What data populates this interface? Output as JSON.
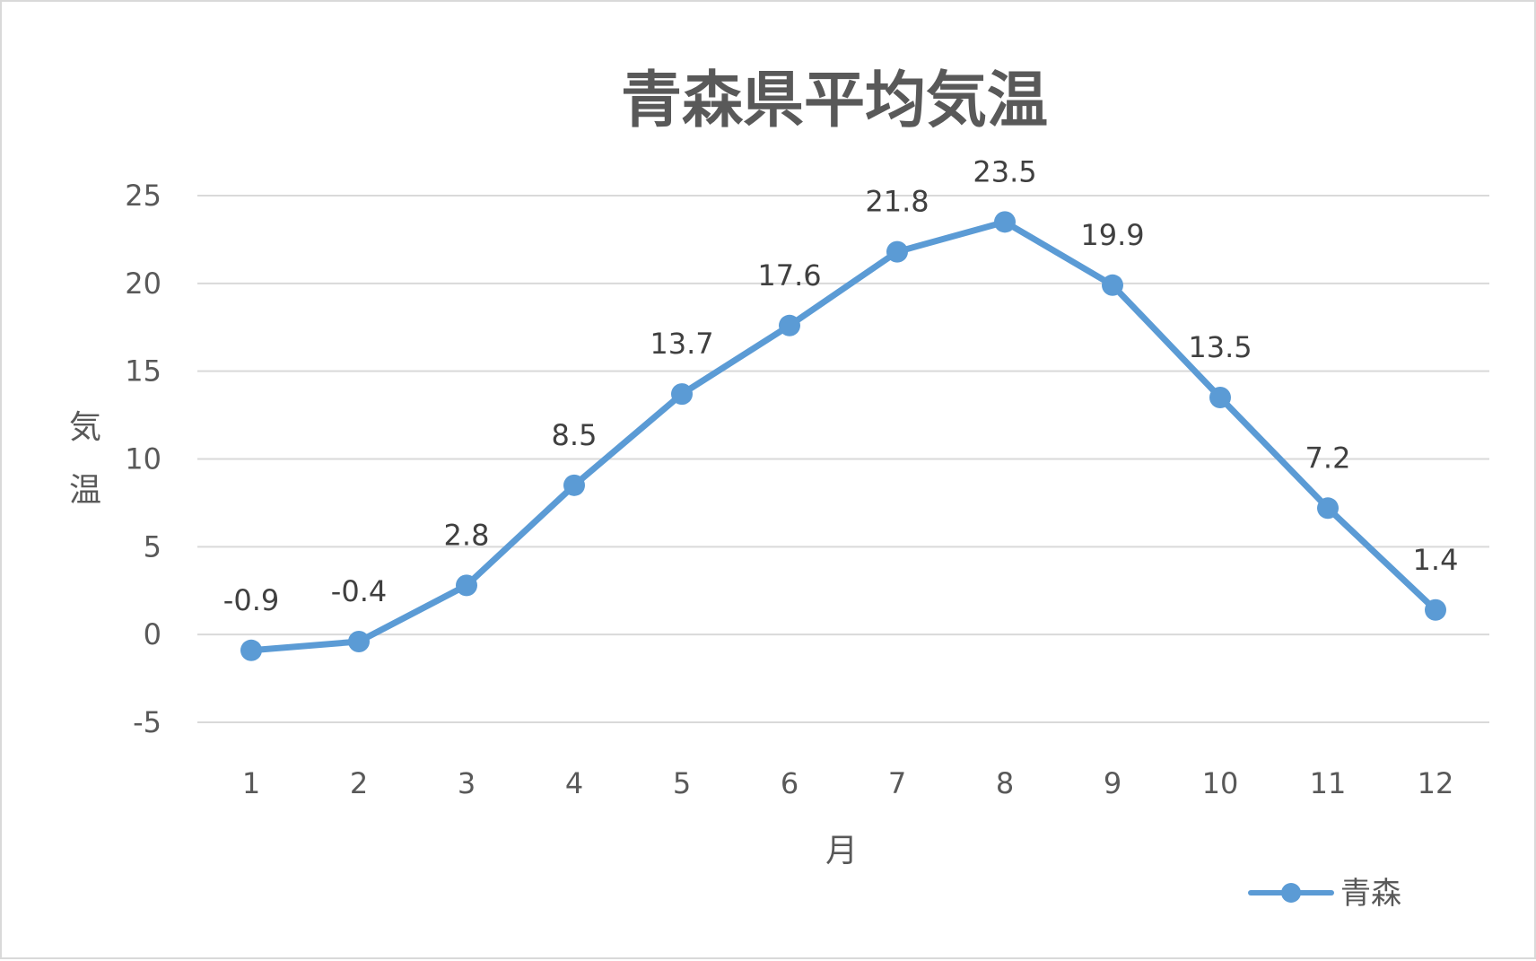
{
  "chart_data": {
    "type": "line",
    "title": "青森県平均気温",
    "xlabel": "月",
    "ylabel": "気温",
    "categories": [
      "1",
      "2",
      "3",
      "4",
      "5",
      "6",
      "7",
      "8",
      "9",
      "10",
      "11",
      "12"
    ],
    "series": [
      {
        "name": "青森",
        "values": [
          -0.9,
          -0.4,
          2.8,
          8.5,
          13.7,
          17.6,
          21.8,
          23.5,
          19.9,
          13.5,
          7.2,
          1.4
        ],
        "color": "#5b9bd5"
      }
    ],
    "data_labels": [
      "-0.9",
      "-0.4",
      "2.8",
      "8.5",
      "13.7",
      "17.6",
      "21.8",
      "23.5",
      "19.9",
      "13.5",
      "7.2",
      "1.4"
    ],
    "ylim": [
      -5,
      25
    ],
    "yticks": [
      "-5",
      "0",
      "5",
      "10",
      "15",
      "20",
      "25"
    ],
    "grid": true,
    "legend_position": "bottom-right"
  }
}
